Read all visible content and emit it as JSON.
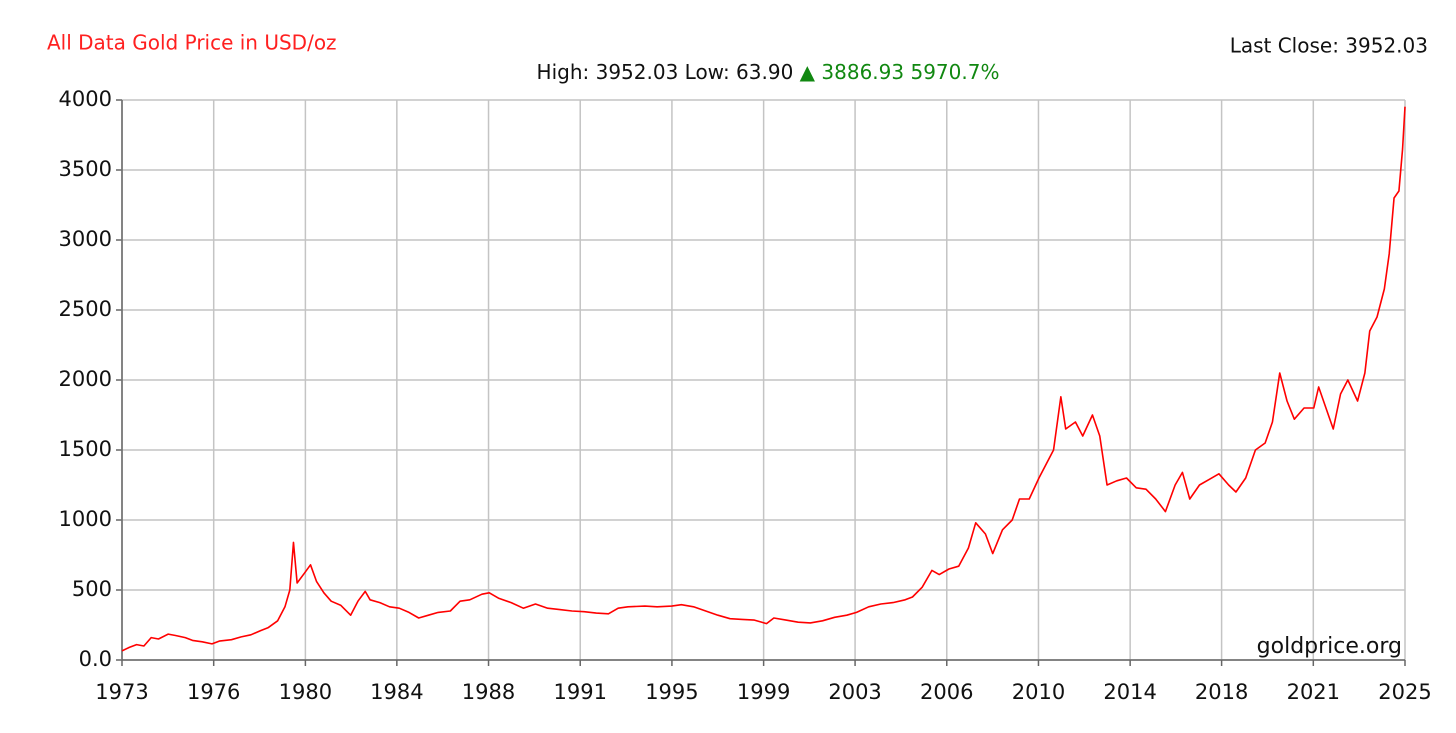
{
  "chart_data": {
    "type": "line",
    "title": "All Data Gold Price in USD/oz",
    "last_close": "Last Close: 3952.03",
    "summary": "High: 3952.03 Low: 63.90",
    "change": "▲ 3886.93 5970.7%",
    "watermark": "goldprice.org",
    "color": "#ff0000",
    "grid": true,
    "xlim": [
      1973.0,
      2025.75
    ],
    "xticks": [
      {
        "value": 1973.0,
        "label": "1973"
      },
      {
        "value": 1976.77,
        "label": "1976"
      },
      {
        "value": 1980.54,
        "label": "1980"
      },
      {
        "value": 1984.3,
        "label": "1984"
      },
      {
        "value": 1988.07,
        "label": "1988"
      },
      {
        "value": 1991.84,
        "label": "1991"
      },
      {
        "value": 1995.61,
        "label": "1995"
      },
      {
        "value": 1999.38,
        "label": "1999"
      },
      {
        "value": 2003.14,
        "label": "2003"
      },
      {
        "value": 2006.91,
        "label": "2006"
      },
      {
        "value": 2010.68,
        "label": "2010"
      },
      {
        "value": 2014.45,
        "label": "2014"
      },
      {
        "value": 2018.21,
        "label": "2018"
      },
      {
        "value": 2021.98,
        "label": "2021"
      },
      {
        "value": 2025.75,
        "label": "2025"
      }
    ],
    "ylim": [
      0,
      4000
    ],
    "yticks": [
      {
        "value": 0,
        "label": "0.0"
      },
      500,
      1000,
      1500,
      2000,
      2500,
      3000,
      3500,
      4000
    ],
    "x": [
      1973.0,
      1973.3,
      1973.6,
      1973.9,
      1974.2,
      1974.5,
      1974.9,
      1975.2,
      1975.6,
      1975.9,
      1976.3,
      1976.7,
      1977.0,
      1977.5,
      1977.9,
      1978.3,
      1978.7,
      1979.0,
      1979.4,
      1979.7,
      1979.9,
      1980.05,
      1980.2,
      1980.5,
      1980.75,
      1981.0,
      1981.3,
      1981.6,
      1982.0,
      1982.4,
      1982.7,
      1983.0,
      1983.2,
      1983.6,
      1984.0,
      1984.4,
      1984.8,
      1985.2,
      1985.6,
      1986.0,
      1986.5,
      1986.9,
      1987.3,
      1987.8,
      1988.1,
      1988.5,
      1989.0,
      1989.5,
      1990.0,
      1990.5,
      1991.0,
      1991.5,
      1992.0,
      1992.5,
      1993.0,
      1993.4,
      1993.8,
      1994.5,
      1995.0,
      1995.6,
      1996.0,
      1996.5,
      1997.0,
      1997.5,
      1998.0,
      1998.5,
      1999.0,
      1999.5,
      1999.8,
      2000.3,
      2000.8,
      2001.3,
      2001.8,
      2002.3,
      2002.8,
      2003.2,
      2003.7,
      2004.2,
      2004.7,
      2005.2,
      2005.5,
      2005.9,
      2006.3,
      2006.6,
      2007.0,
      2007.4,
      2007.8,
      2008.1,
      2008.5,
      2008.8,
      2009.2,
      2009.6,
      2009.9,
      2010.3,
      2010.7,
      2011.0,
      2011.3,
      2011.6,
      2011.8,
      2012.2,
      2012.5,
      2012.9,
      2013.2,
      2013.5,
      2013.9,
      2014.3,
      2014.7,
      2015.1,
      2015.5,
      2015.9,
      2016.3,
      2016.6,
      2016.9,
      2017.3,
      2017.7,
      2018.1,
      2018.5,
      2018.8,
      2019.2,
      2019.6,
      2020.0,
      2020.3,
      2020.6,
      2020.9,
      2021.2,
      2021.6,
      2022.0,
      2022.2,
      2022.6,
      2022.8,
      2023.1,
      2023.4,
      2023.8,
      2024.1,
      2024.3,
      2024.6,
      2024.9,
      2025.1,
      2025.3,
      2025.5,
      2025.65,
      2025.75
    ],
    "values": [
      65,
      90,
      110,
      100,
      160,
      150,
      185,
      175,
      160,
      140,
      130,
      115,
      135,
      145,
      165,
      180,
      210,
      230,
      280,
      380,
      500,
      840,
      550,
      620,
      680,
      560,
      480,
      420,
      390,
      320,
      420,
      490,
      430,
      410,
      380,
      370,
      340,
      300,
      320,
      340,
      350,
      420,
      430,
      470,
      480,
      440,
      410,
      370,
      400,
      370,
      360,
      350,
      345,
      335,
      330,
      370,
      380,
      385,
      380,
      385,
      395,
      380,
      350,
      320,
      295,
      290,
      285,
      260,
      300,
      285,
      270,
      265,
      280,
      305,
      320,
      340,
      380,
      400,
      410,
      430,
      450,
      520,
      640,
      610,
      650,
      670,
      800,
      980,
      900,
      760,
      930,
      1000,
      1150,
      1150,
      1300,
      1400,
      1500,
      1880,
      1650,
      1700,
      1600,
      1750,
      1600,
      1250,
      1280,
      1300,
      1230,
      1220,
      1150,
      1060,
      1250,
      1340,
      1150,
      1250,
      1290,
      1330,
      1250,
      1200,
      1300,
      1500,
      1550,
      1700,
      2050,
      1850,
      1720,
      1800,
      1800,
      1950,
      1750,
      1650,
      1900,
      2000,
      1850,
      2050,
      2350,
      2450,
      2650,
      2900,
      3300,
      3350,
      3650,
      3952.03
    ]
  }
}
